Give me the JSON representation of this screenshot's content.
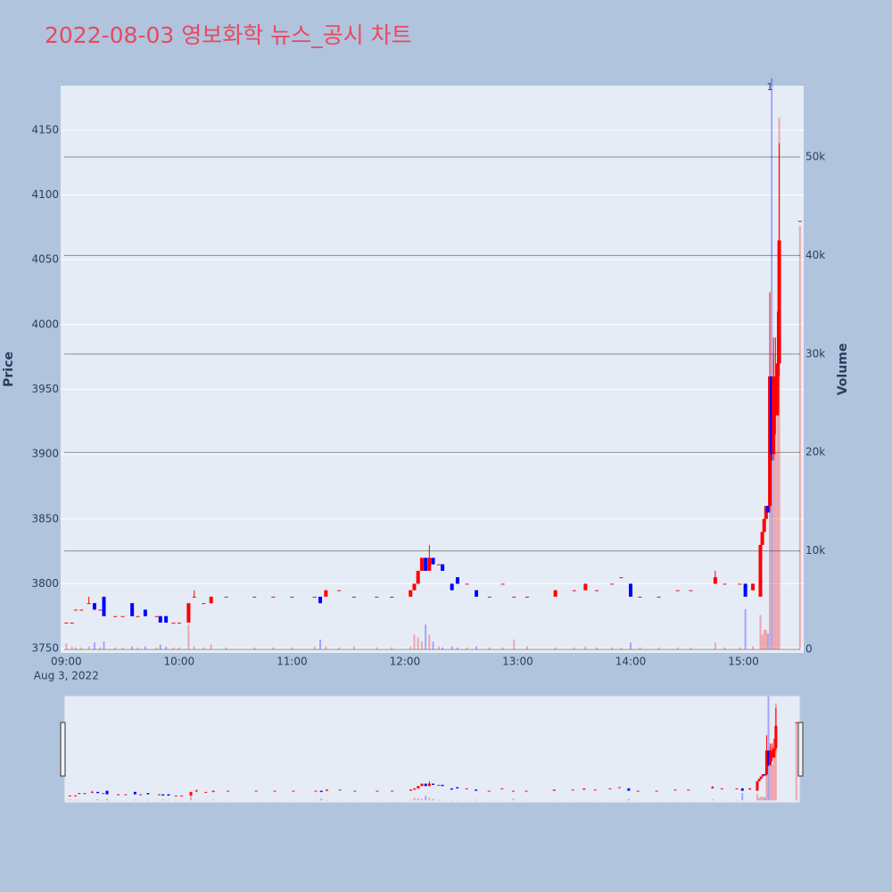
{
  "chart_data": {
    "type": "candlestick",
    "title": "2022-08-03 영보화학 뉴스_공시 차트",
    "x": [
      "09:00",
      "09:03",
      "09:05",
      "09:08",
      "09:12",
      "09:15",
      "09:18",
      "09:20",
      "09:26",
      "09:30",
      "09:35",
      "09:38",
      "09:42",
      "09:48",
      "09:50",
      "09:53",
      "09:57",
      "10:00",
      "10:05",
      "10:08",
      "10:13",
      "10:17",
      "10:25",
      "10:40",
      "10:50",
      "11:00",
      "11:12",
      "11:15",
      "11:18",
      "11:25",
      "11:33",
      "11:45",
      "11:53",
      "12:03",
      "12:05",
      "12:07",
      "12:09",
      "12:11",
      "12:13",
      "12:15",
      "12:18",
      "12:20",
      "12:25",
      "12:28",
      "12:33",
      "12:38",
      "12:45",
      "12:52",
      "12:58",
      "13:05",
      "13:20",
      "13:30",
      "13:36",
      "13:42",
      "13:50",
      "13:55",
      "14:00",
      "14:05",
      "14:15",
      "14:25",
      "14:32",
      "14:45",
      "14:50",
      "14:58",
      "15:01",
      "15:05",
      "15:09",
      "15:10",
      "15:11",
      "15:12",
      "15:13",
      "15:14",
      "15:15",
      "15:16",
      "15:17",
      "15:18",
      "15:19",
      "15:30"
    ],
    "open": [
      3770,
      3770,
      3780,
      3780,
      3785,
      3785,
      3780,
      3790,
      3775,
      3775,
      3785,
      3775,
      3780,
      3775,
      3775,
      3775,
      3770,
      3770,
      3770,
      3790,
      3785,
      3785,
      3790,
      3790,
      3790,
      3790,
      3790,
      3790,
      3790,
      3795,
      3790,
      3790,
      3790,
      3790,
      3795,
      3800,
      3810,
      3820,
      3810,
      3820,
      3815,
      3815,
      3800,
      3805,
      3800,
      3795,
      3790,
      3800,
      3790,
      3790,
      3790,
      3795,
      3795,
      3795,
      3800,
      3805,
      3800,
      3790,
      3790,
      3795,
      3795,
      3800,
      3800,
      3800,
      3800,
      3795,
      3790,
      3830,
      3840,
      3850,
      3860,
      3860,
      3960,
      3900,
      3930,
      3930,
      3970,
      4080
    ],
    "high": [
      3770,
      3770,
      3780,
      3780,
      3790,
      3785,
      3780,
      3790,
      3775,
      3775,
      3785,
      3775,
      3780,
      3775,
      3775,
      3775,
      3770,
      3770,
      3785,
      3795,
      3785,
      3790,
      3790,
      3790,
      3790,
      3790,
      3790,
      3790,
      3795,
      3795,
      3790,
      3790,
      3790,
      3795,
      3800,
      3810,
      3820,
      3820,
      3830,
      3820,
      3815,
      3815,
      3800,
      3805,
      3800,
      3795,
      3790,
      3800,
      3790,
      3790,
      3795,
      3795,
      3800,
      3795,
      3800,
      3805,
      3800,
      3790,
      3790,
      3795,
      3795,
      3810,
      3800,
      3800,
      3800,
      3800,
      3830,
      3840,
      3850,
      3860,
      3860,
      4025,
      3960,
      3990,
      3990,
      4010,
      4140,
      4080
    ],
    "low": [
      3770,
      3770,
      3780,
      3780,
      3785,
      3780,
      3780,
      3775,
      3775,
      3775,
      3775,
      3775,
      3775,
      3775,
      3770,
      3770,
      3770,
      3770,
      3770,
      3790,
      3785,
      3785,
      3790,
      3790,
      3790,
      3790,
      3790,
      3785,
      3790,
      3795,
      3790,
      3790,
      3790,
      3790,
      3795,
      3800,
      3810,
      3810,
      3810,
      3815,
      3815,
      3810,
      3795,
      3800,
      3800,
      3790,
      3790,
      3800,
      3790,
      3790,
      3790,
      3795,
      3795,
      3795,
      3800,
      3805,
      3790,
      3790,
      3790,
      3795,
      3795,
      3800,
      3800,
      3800,
      3790,
      3795,
      3790,
      3830,
      3840,
      3850,
      3855,
      3855,
      3895,
      3895,
      3915,
      3930,
      3960,
      4080
    ],
    "close": [
      3770,
      3770,
      3780,
      3780,
      3785,
      3780,
      3780,
      3775,
      3775,
      3775,
      3775,
      3775,
      3775,
      3775,
      3770,
      3770,
      3770,
      3770,
      3785,
      3790,
      3785,
      3790,
      3790,
      3790,
      3790,
      3790,
      3790,
      3785,
      3795,
      3795,
      3790,
      3790,
      3790,
      3795,
      3800,
      3810,
      3820,
      3810,
      3820,
      3815,
      3815,
      3810,
      3795,
      3800,
      3800,
      3790,
      3790,
      3800,
      3790,
      3790,
      3795,
      3795,
      3800,
      3795,
      3800,
      3805,
      3790,
      3790,
      3790,
      3795,
      3795,
      3805,
      3800,
      3800,
      3790,
      3800,
      3830,
      3840,
      3850,
      3860,
      3855,
      3960,
      3900,
      3960,
      3960,
      3970,
      4065,
      4080
    ],
    "volume": [
      600,
      300,
      200,
      200,
      300,
      700,
      200,
      800,
      200,
      200,
      300,
      200,
      300,
      200,
      500,
      300,
      200,
      200,
      2500,
      300,
      200,
      500,
      200,
      200,
      200,
      200,
      300,
      1000,
      300,
      200,
      300,
      200,
      200,
      300,
      1500,
      1200,
      800,
      2500,
      1500,
      800,
      300,
      200,
      300,
      200,
      200,
      300,
      200,
      200,
      1000,
      300,
      200,
      200,
      300,
      200,
      200,
      200,
      700,
      200,
      200,
      200,
      200,
      700,
      200,
      200,
      4100,
      300,
      3500,
      1500,
      2000,
      2000,
      1600,
      20000,
      58000,
      30000,
      20000,
      25000,
      54000,
      43000
    ],
    "up_color": "#ff0000",
    "down_color": "#0000ff",
    "xlim": [
      "08:57",
      "15:32"
    ],
    "xticks": [
      "09:00",
      "10:00",
      "11:00",
      "12:00",
      "13:00",
      "14:00",
      "15:00"
    ],
    "x_date_label": "Aug 3, 2022",
    "ylim": [
      3746.6,
      4184.4
    ],
    "yticks": [
      3750,
      3800,
      3850,
      3900,
      3950,
      4000,
      4050,
      4100,
      4150
    ],
    "y2lim": [
      -360,
      57250
    ],
    "y2ticks": [
      0,
      {
        "value": 10000,
        "label": "10k"
      },
      {
        "value": 20000,
        "label": "20k"
      },
      {
        "value": 30000,
        "label": "30k"
      },
      {
        "value": 40000,
        "label": "40k"
      },
      {
        "value": 50000,
        "label": "50k"
      }
    ],
    "yaxis_title": "Price",
    "y2axis_title": "Volume",
    "annotations": [
      {
        "x": "15:14",
        "text": "1"
      }
    ],
    "rangeslider": true
  }
}
